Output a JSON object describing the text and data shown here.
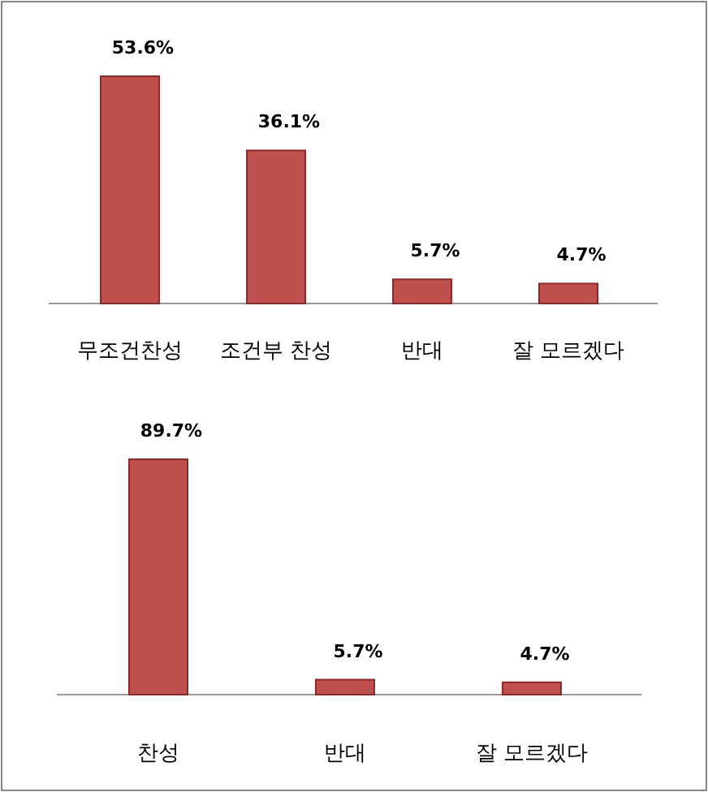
{
  "chart_data": [
    {
      "type": "bar",
      "categories": [
        "무조건찬성",
        "조건부 찬성",
        "반대",
        "잘 모르겠다"
      ],
      "values": [
        53.6,
        36.1,
        5.7,
        4.7
      ],
      "color": "#c0504d",
      "value_labels": [
        "53.6%",
        "36.1%",
        "5.7%",
        "4.7%"
      ]
    },
    {
      "type": "bar",
      "categories": [
        "찬성",
        "반대",
        "잘 모르겠다"
      ],
      "values": [
        89.7,
        5.7,
        4.7
      ],
      "color": "#c0504d",
      "value_labels": [
        "89.7%",
        "5.7%",
        "4.7%"
      ]
    }
  ]
}
